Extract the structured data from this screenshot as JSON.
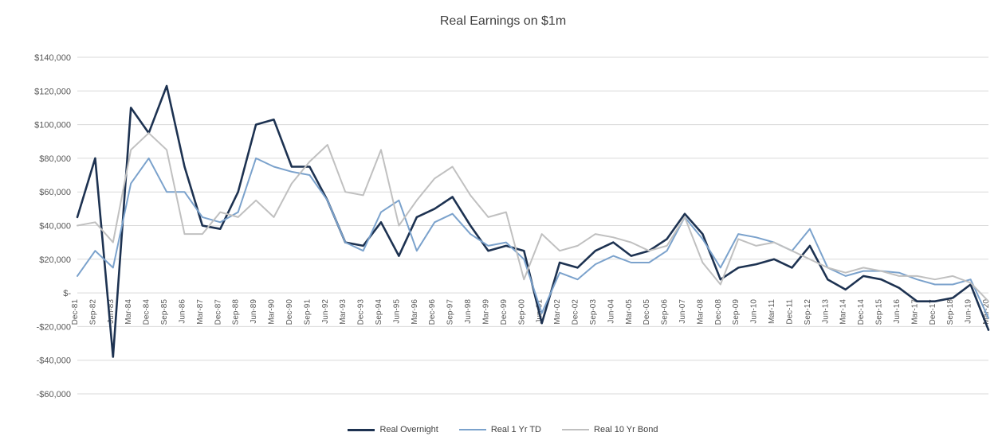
{
  "chart_data": {
    "type": "line",
    "title": "Real Earnings on $1m",
    "xlabel": "",
    "ylabel": "",
    "ylim": [
      -60000,
      140000
    ],
    "grid": true,
    "legend_position": "bottom",
    "y_axis": {
      "min": -60000,
      "max": 140000,
      "step": 20000,
      "tick_labels": [
        "$140,000",
        "$120,000",
        "$100,000",
        "$80,000",
        "$60,000",
        "$40,000",
        "$20,000",
        "$-",
        "-$20,000",
        "-$40,000",
        "-$60,000"
      ],
      "tick_values": [
        140000,
        120000,
        100000,
        80000,
        60000,
        40000,
        20000,
        0,
        -20000,
        -40000,
        -60000
      ]
    },
    "categories": [
      "Dec-81",
      "Sep-82",
      "Jun-83",
      "Mar-84",
      "Dec-84",
      "Sep-85",
      "Jun-86",
      "Mar-87",
      "Dec-87",
      "Sep-88",
      "Jun-89",
      "Mar-90",
      "Dec-90",
      "Sep-91",
      "Jun-92",
      "Mar-93",
      "Dec-93",
      "Sep-94",
      "Jun-95",
      "Mar-96",
      "Dec-96",
      "Sep-97",
      "Jun-98",
      "Mar-99",
      "Dec-99",
      "Sep-00",
      "Jun-01",
      "Mar-02",
      "Dec-02",
      "Sep-03",
      "Jun-04",
      "Mar-05",
      "Dec-05",
      "Sep-06",
      "Jun-07",
      "Mar-08",
      "Dec-08",
      "Sep-09",
      "Jun-10",
      "Mar-11",
      "Dec-11",
      "Sep-12",
      "Jun-13",
      "Mar-14",
      "Dec-14",
      "Sep-15",
      "Jun-16",
      "Mar-17",
      "Dec-17",
      "Sep-18",
      "Jun-19",
      "Mar-20"
    ],
    "series": [
      {
        "name": "Real Overnight",
        "color": "#1d3251",
        "values": [
          45000,
          80000,
          -38000,
          110000,
          95000,
          123000,
          75000,
          40000,
          38000,
          60000,
          100000,
          103000,
          75000,
          75000,
          55000,
          30000,
          28000,
          42000,
          22000,
          45000,
          50000,
          57000,
          40000,
          25000,
          28000,
          25000,
          -18000,
          18000,
          15000,
          25000,
          30000,
          22000,
          25000,
          32000,
          47000,
          35000,
          8000,
          15000,
          17000,
          20000,
          15000,
          28000,
          8000,
          2000,
          10000,
          8000,
          3000,
          -5000,
          -5000,
          -3000,
          5000,
          -22000
        ]
      },
      {
        "name": "Real 1 Yr TD",
        "color": "#7ba2cc",
        "values": [
          10000,
          25000,
          15000,
          65000,
          80000,
          60000,
          60000,
          45000,
          42000,
          48000,
          80000,
          75000,
          72000,
          70000,
          55000,
          30000,
          25000,
          48000,
          55000,
          25000,
          42000,
          47000,
          35000,
          28000,
          30000,
          20000,
          -12000,
          12000,
          8000,
          17000,
          22000,
          18000,
          18000,
          25000,
          45000,
          32000,
          15000,
          35000,
          33000,
          30000,
          25000,
          38000,
          15000,
          10000,
          13000,
          13000,
          12000,
          8000,
          5000,
          5000,
          8000,
          -15000
        ]
      },
      {
        "name": "Real 10 Yr Bond",
        "color": "#c0c0c0",
        "values": [
          40000,
          42000,
          30000,
          85000,
          95000,
          85000,
          35000,
          35000,
          48000,
          45000,
          55000,
          45000,
          65000,
          78000,
          88000,
          60000,
          58000,
          85000,
          40000,
          55000,
          68000,
          75000,
          58000,
          45000,
          48000,
          8000,
          35000,
          25000,
          28000,
          35000,
          33000,
          30000,
          25000,
          28000,
          45000,
          18000,
          5000,
          32000,
          28000,
          30000,
          25000,
          20000,
          15000,
          12000,
          15000,
          13000,
          10000,
          10000,
          8000,
          10000,
          6000,
          -5000
        ]
      }
    ]
  }
}
